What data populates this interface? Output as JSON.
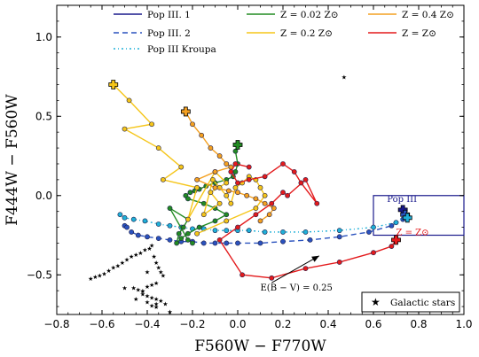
{
  "chart_data": {
    "type": "scatter",
    "xlabel": "F560W − F770W",
    "ylabel": "F444W − F560W",
    "xlim": [
      -0.8,
      1.0
    ],
    "ylim": [
      -0.75,
      1.2
    ],
    "x_ticks": [
      -0.8,
      -0.6,
      -0.4,
      -0.2,
      0.0,
      0.2,
      0.4,
      0.6,
      0.8,
      1.0
    ],
    "x_tick_labels": [
      "−0.8",
      "−0.6",
      "−0.4",
      "−0.2",
      "0.0",
      "0.2",
      "0.4",
      "0.6",
      "0.8",
      "1.0"
    ],
    "y_ticks": [
      -0.5,
      0.0,
      0.5,
      1.0
    ],
    "y_tick_labels": [
      "−0.5",
      "0.0",
      "0.5",
      "1.0"
    ],
    "legend_top": [
      {
        "label": "Pop III. 1",
        "color": "#1a1a8c",
        "style": "solid"
      },
      {
        "label": "Z = 0.02 Z⊙",
        "color": "#228b22",
        "style": "solid"
      },
      {
        "label": "Z = 0.4 Z⊙",
        "color": "#f4a020",
        "style": "solid"
      },
      {
        "label": "Pop III. 2",
        "color": "#2a52be",
        "style": "dashed"
      },
      {
        "label": "Z = 0.2 Z⊙",
        "color": "#f5c518",
        "style": "solid"
      },
      {
        "label": "Z = Z⊙",
        "color": "#e31a1c",
        "style": "solid"
      },
      {
        "label": "Pop III Kroupa",
        "color": "#1fb0d8",
        "style": "dashdot"
      }
    ],
    "legend_bottom": {
      "label": "Galactic stars",
      "marker": "★"
    },
    "annotations": {
      "arrow_label": "E(B − V) = 0.25",
      "arrow_from": [
        0.15,
        -0.55
      ],
      "arrow_to": [
        0.36,
        -0.38
      ],
      "box_label_popIII": "Pop III",
      "box_label_zsun": "Z = Z⊙",
      "popIII_box": {
        "x": [
          0.6,
          1.0
        ],
        "y": [
          -0.25,
          0.0
        ]
      }
    },
    "series": [
      {
        "name": "Pop III. 1",
        "color": "#1a1a8c",
        "style": "solid",
        "marker": "none",
        "x": [
          0.72,
          0.73,
          0.74,
          0.75
        ],
        "y": [
          -0.09,
          -0.11,
          -0.12,
          -0.14
        ]
      },
      {
        "name": "Pop III. 2",
        "color": "#2a52be",
        "style": "dashed",
        "marker": "circle",
        "x": [
          -0.5,
          -0.49,
          -0.47,
          -0.44,
          -0.4,
          -0.35,
          -0.3,
          -0.25,
          -0.2,
          -0.15,
          -0.1,
          -0.05,
          0.0,
          0.1,
          0.2,
          0.32,
          0.45,
          0.58,
          0.68,
          0.73
        ],
        "y": [
          -0.19,
          -0.2,
          -0.23,
          -0.25,
          -0.26,
          -0.27,
          -0.28,
          -0.29,
          -0.29,
          -0.3,
          -0.3,
          -0.3,
          -0.3,
          -0.3,
          -0.29,
          -0.28,
          -0.26,
          -0.23,
          -0.19,
          -0.15
        ]
      },
      {
        "name": "Pop III Kroupa",
        "color": "#1fb0d8",
        "style": "dashdot",
        "marker": "circle",
        "x": [
          -0.52,
          -0.5,
          -0.46,
          -0.41,
          -0.35,
          -0.3,
          -0.25,
          -0.2,
          -0.15,
          -0.1,
          -0.05,
          0.0,
          0.05,
          0.12,
          0.2,
          0.3,
          0.45,
          0.6,
          0.7,
          0.74
        ],
        "y": [
          -0.12,
          -0.14,
          -0.15,
          -0.16,
          -0.18,
          -0.19,
          -0.2,
          -0.21,
          -0.21,
          -0.22,
          -0.22,
          -0.22,
          -0.22,
          -0.23,
          -0.23,
          -0.23,
          -0.22,
          -0.2,
          -0.17,
          -0.13
        ]
      },
      {
        "name": "Z = 0.02 Z⊙",
        "color": "#228b22",
        "style": "solid",
        "marker": "circle",
        "x": [
          0.0,
          -0.01,
          0.0,
          -0.01,
          -0.02,
          -0.05,
          -0.1,
          -0.14,
          -0.17,
          -0.19,
          -0.21,
          -0.23,
          -0.22,
          -0.15,
          -0.1,
          -0.05,
          -0.1,
          -0.17,
          -0.22,
          -0.25,
          -0.27,
          -0.26,
          -0.24,
          -0.22,
          -0.3,
          -0.22,
          -0.2
        ],
        "y": [
          0.32,
          0.28,
          0.2,
          0.15,
          0.12,
          0.1,
          0.08,
          0.06,
          0.04,
          0.03,
          0.02,
          0.0,
          -0.02,
          -0.05,
          -0.08,
          -0.12,
          -0.16,
          -0.2,
          -0.24,
          -0.27,
          -0.3,
          -0.24,
          -0.2,
          -0.15,
          -0.08,
          -0.28,
          -0.3
        ]
      },
      {
        "name": "Z = 0.2 Z⊙",
        "color": "#f5c518",
        "style": "solid",
        "marker": "circle",
        "x": [
          -0.55,
          -0.48,
          -0.38,
          -0.5,
          -0.35,
          -0.25,
          -0.33,
          -0.18,
          -0.22,
          -0.1,
          -0.05,
          -0.12,
          -0.08,
          -0.15,
          -0.11,
          -0.08,
          -0.05,
          -0.03,
          -0.01,
          0.02,
          0.05,
          0.08,
          0.1,
          0.12,
          0.08,
          -0.05,
          -0.18
        ],
        "y": [
          0.7,
          0.6,
          0.45,
          0.42,
          0.3,
          0.18,
          0.1,
          0.05,
          -0.15,
          0.15,
          0.08,
          0.02,
          -0.05,
          -0.12,
          0.1,
          0.05,
          0.0,
          -0.05,
          0.05,
          0.08,
          0.12,
          0.1,
          0.05,
          0.0,
          -0.08,
          -0.16,
          -0.24
        ]
      },
      {
        "name": "Z = 0.4 Z⊙",
        "color": "#f4a020",
        "style": "solid",
        "marker": "circle",
        "x": [
          -0.23,
          -0.2,
          -0.16,
          -0.12,
          -0.08,
          -0.05,
          -0.03,
          -0.1,
          -0.18,
          -0.1,
          -0.04,
          0.0,
          0.04,
          0.08,
          0.12,
          0.16,
          0.14,
          0.1
        ],
        "y": [
          0.53,
          0.45,
          0.38,
          0.3,
          0.25,
          0.2,
          0.18,
          0.15,
          0.1,
          0.05,
          0.03,
          0.02,
          0.0,
          -0.02,
          -0.05,
          -0.08,
          -0.12,
          -0.16
        ]
      },
      {
        "name": "Z = Z⊙",
        "color": "#e31a1c",
        "style": "solid",
        "marker": "circle",
        "x": [
          0.7,
          0.68,
          0.6,
          0.45,
          0.3,
          0.15,
          0.02,
          -0.08,
          0.0,
          0.08,
          0.15,
          0.2,
          0.22,
          0.3,
          0.35,
          0.28,
          0.25,
          0.2,
          0.12,
          0.05,
          0.0,
          -0.03,
          -0.01,
          0.05
        ],
        "y": [
          -0.28,
          -0.32,
          -0.36,
          -0.42,
          -0.46,
          -0.52,
          -0.5,
          -0.28,
          -0.2,
          -0.12,
          -0.05,
          0.02,
          0.0,
          0.1,
          -0.05,
          0.08,
          0.15,
          0.2,
          0.12,
          0.1,
          0.08,
          0.15,
          0.2,
          0.18
        ]
      },
      {
        "name": "Galactic stars",
        "color": "#000000",
        "style": "none",
        "marker": "star",
        "x": [
          0.47,
          -0.4,
          -0.42,
          -0.45,
          -0.36,
          -0.3,
          -0.65,
          -0.63,
          -0.61,
          -0.59,
          -0.57,
          -0.55,
          -0.53,
          -0.51,
          -0.49,
          -0.47,
          -0.45,
          -0.43,
          -0.41,
          -0.39,
          -0.38,
          -0.37,
          -0.36,
          -0.35,
          -0.34,
          -0.33,
          -0.5,
          -0.46,
          -0.44,
          -0.42,
          -0.4,
          -0.38,
          -0.36,
          -0.42,
          -0.4,
          -0.38,
          -0.36,
          -0.34,
          -0.32,
          -0.4,
          -0.38,
          -0.36
        ],
        "y": [
          0.75,
          -0.48,
          -0.6,
          -0.65,
          -0.68,
          -0.73,
          -0.52,
          -0.51,
          -0.5,
          -0.49,
          -0.47,
          -0.45,
          -0.44,
          -0.42,
          -0.4,
          -0.38,
          -0.37,
          -0.36,
          -0.34,
          -0.33,
          -0.31,
          -0.38,
          -0.42,
          -0.45,
          -0.48,
          -0.5,
          -0.58,
          -0.58,
          -0.59,
          -0.6,
          -0.57,
          -0.56,
          -0.55,
          -0.62,
          -0.63,
          -0.64,
          -0.65,
          -0.66,
          -0.68,
          -0.67,
          -0.69,
          -0.7
        ]
      }
    ],
    "cross_markers": [
      {
        "x": -0.55,
        "y": 0.7,
        "fill": "#f5c518"
      },
      {
        "x": -0.23,
        "y": 0.53,
        "fill": "#f4a020"
      },
      {
        "x": 0.0,
        "y": 0.32,
        "fill": "#228b22"
      },
      {
        "x": 0.73,
        "y": -0.09,
        "fill": "#1a1a8c"
      },
      {
        "x": 0.74,
        "y": -0.12,
        "fill": "#2a52be"
      },
      {
        "x": 0.75,
        "y": -0.14,
        "fill": "#1fb0d8"
      },
      {
        "x": 0.7,
        "y": -0.28,
        "fill": "#e31a1c"
      }
    ]
  }
}
